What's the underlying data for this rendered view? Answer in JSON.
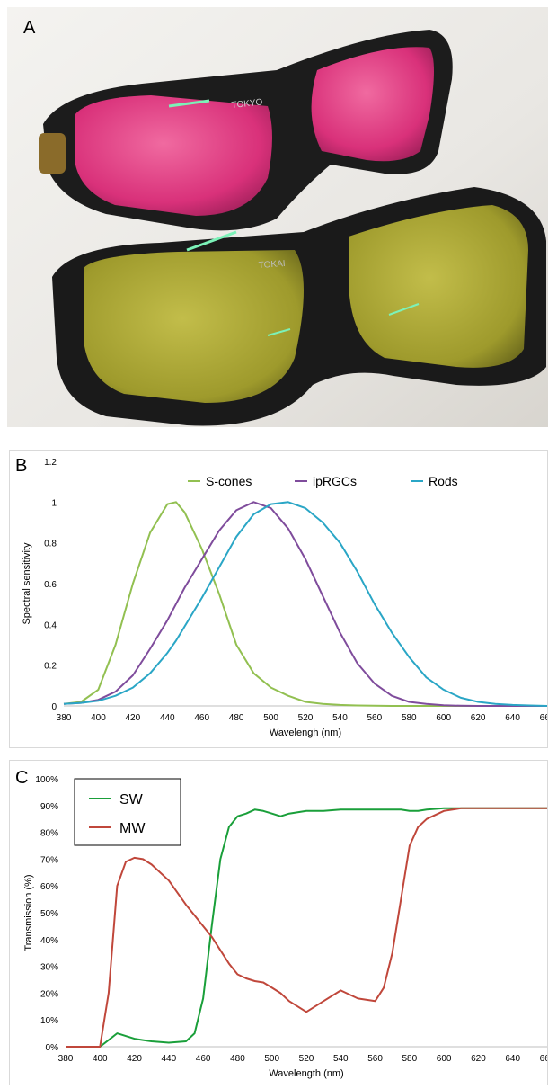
{
  "panels": {
    "a": {
      "letter": "A"
    },
    "b": {
      "letter": "B"
    },
    "c": {
      "letter": "C"
    }
  },
  "photo": {
    "glasses_top_brand": "TOKYO",
    "glasses_bottom_brand": "TOKAI",
    "colors": {
      "magenta_lens": "#e0407f",
      "yellow_lens": "#a9a33a",
      "frame": "#1c1c1c",
      "table": "#e9e7e3"
    }
  },
  "chart_data": [
    {
      "type": "line",
      "xlabel": "Wavelengh (nm)",
      "ylabel": "Spectral sensitivity",
      "xlim": [
        380,
        660
      ],
      "ylim": [
        0,
        1.2
      ],
      "x_ticks": [
        "380",
        "400",
        "420",
        "440",
        "460",
        "480",
        "500",
        "520",
        "540",
        "560",
        "580",
        "600",
        "620",
        "640",
        "660"
      ],
      "y_ticks": [
        "0",
        "0.2",
        "0.4",
        "0.6",
        "0.8",
        "1",
        "1.2"
      ],
      "legend_position": "top",
      "grid": false,
      "x": [
        380,
        390,
        400,
        410,
        420,
        430,
        440,
        445,
        450,
        460,
        470,
        480,
        490,
        500,
        510,
        520,
        530,
        540,
        550,
        560,
        570,
        580,
        590,
        600,
        610,
        620,
        630,
        640,
        650,
        660
      ],
      "series": [
        {
          "name": "S-cones",
          "color": "#92c051",
          "values": [
            0.01,
            0.02,
            0.08,
            0.3,
            0.6,
            0.85,
            0.99,
            1.0,
            0.95,
            0.77,
            0.55,
            0.3,
            0.16,
            0.09,
            0.05,
            0.02,
            0.01,
            0.005,
            0.002,
            0.001,
            0,
            0,
            0,
            0,
            0,
            0,
            0,
            0,
            0,
            0
          ]
        },
        {
          "name": "ipRGCs",
          "color": "#7f4c9c",
          "values": [
            0.01,
            0.015,
            0.03,
            0.07,
            0.15,
            0.28,
            0.42,
            0.5,
            0.58,
            0.72,
            0.86,
            0.96,
            1.0,
            0.97,
            0.87,
            0.72,
            0.54,
            0.36,
            0.21,
            0.11,
            0.05,
            0.02,
            0.01,
            0.003,
            0.001,
            0,
            0,
            0,
            0,
            0
          ]
        },
        {
          "name": "Rods",
          "color": "#2aa6c6",
          "values": [
            0.01,
            0.015,
            0.025,
            0.05,
            0.09,
            0.16,
            0.26,
            0.32,
            0.39,
            0.53,
            0.68,
            0.83,
            0.94,
            0.99,
            1.0,
            0.97,
            0.9,
            0.8,
            0.66,
            0.5,
            0.36,
            0.24,
            0.14,
            0.08,
            0.04,
            0.02,
            0.01,
            0.005,
            0.002,
            0
          ]
        }
      ]
    },
    {
      "type": "line",
      "xlabel": "Wavelength (nm)",
      "ylabel": "Transmission (%)",
      "xlim": [
        380,
        660
      ],
      "ylim": [
        0,
        100
      ],
      "x_ticks": [
        "380",
        "400",
        "420",
        "440",
        "460",
        "480",
        "500",
        "520",
        "540",
        "560",
        "580",
        "600",
        "620",
        "640",
        "660"
      ],
      "y_ticks": [
        "0%",
        "10%",
        "20%",
        "30%",
        "40%",
        "50%",
        "60%",
        "70%",
        "80%",
        "90%",
        "100%"
      ],
      "legend_position": "top-left",
      "grid": false,
      "x": [
        380,
        390,
        400,
        405,
        410,
        415,
        420,
        425,
        430,
        440,
        450,
        455,
        460,
        465,
        470,
        475,
        480,
        485,
        490,
        495,
        500,
        505,
        510,
        520,
        530,
        540,
        550,
        560,
        565,
        570,
        575,
        580,
        585,
        590,
        600,
        610,
        620,
        630,
        640,
        650,
        660
      ],
      "series": [
        {
          "name": "SW",
          "color": "#1a9f3a",
          "values": [
            0,
            0,
            0,
            2.5,
            5,
            4,
            3,
            2.5,
            2,
            1.5,
            2,
            5,
            18,
            45,
            70,
            82,
            86,
            87,
            88.5,
            88,
            87,
            86,
            87,
            88,
            88,
            88.5,
            88.5,
            88.5,
            88.5,
            88.5,
            88.5,
            88,
            88,
            88.5,
            89,
            89,
            89,
            89,
            89,
            89,
            89
          ]
        },
        {
          "name": "MW",
          "color": "#c0473b",
          "values": [
            0,
            0,
            0,
            20,
            60,
            69,
            70.5,
            70,
            68,
            62,
            53,
            49,
            45,
            41,
            36,
            31,
            27,
            25.5,
            24.5,
            24,
            22,
            20,
            17,
            13,
            17,
            21,
            18,
            17,
            22,
            35,
            55,
            75,
            82,
            85,
            88,
            89,
            89,
            89,
            89,
            89,
            89
          ]
        }
      ]
    }
  ]
}
